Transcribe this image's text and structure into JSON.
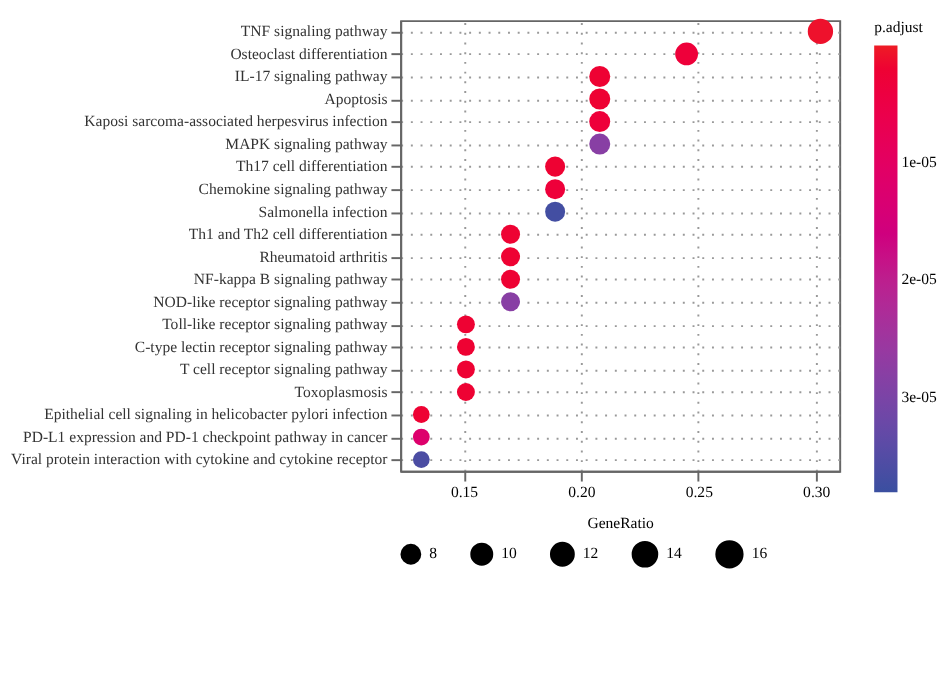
{
  "chart_data": {
    "type": "bubble",
    "orientation": "horizontal",
    "xlabel": "GeneRatio",
    "clabel": "p.adjust",
    "categories": [
      "TNF signaling pathway",
      "Osteoclast differentiation",
      "IL-17 signaling pathway",
      "Apoptosis",
      "Kaposi sarcoma-associated herpesvirus infection",
      "MAPK signaling pathway",
      "Th17 cell differentiation",
      "Chemokine signaling pathway",
      "Salmonella infection",
      "Th1 and Th2 cell differentiation",
      "Rheumatoid arthritis",
      "NF-kappa B signaling pathway",
      "NOD-like receptor signaling pathway",
      "Toll-like receptor signaling pathway",
      "C-type lectin receptor signaling pathway",
      "T cell receptor signaling pathway",
      "Toxoplasmosis",
      "Epithelial cell signaling in helicobacter pylori infection",
      "PD-L1 expression and PD-1 checkpoint pathway in cancer",
      "Viral protein interaction with cytokine and cytokine receptor"
    ],
    "values": [
      0.302,
      0.245,
      0.208,
      0.208,
      0.208,
      0.208,
      0.189,
      0.189,
      0.189,
      0.17,
      0.17,
      0.17,
      0.17,
      0.151,
      0.151,
      0.151,
      0.151,
      0.132,
      0.132,
      0.132
    ],
    "sizes": [
      16,
      13,
      11,
      11,
      11,
      11,
      10,
      10,
      10,
      9,
      9,
      9,
      9,
      8,
      8,
      8,
      8,
      7,
      7,
      7
    ],
    "size_legend": [
      8,
      10,
      12,
      14,
      16
    ],
    "cvalues": [
      1e-06,
      3e-06,
      2e-06,
      2e-06,
      3e-06,
      2.8e-05,
      2e-06,
      3e-06,
      3.7e-05,
      2e-06,
      2e-06,
      2e-06,
      2.8e-05,
      2e-06,
      2e-06,
      2e-06,
      2e-06,
      2e-06,
      1.2e-05,
      3.6e-05
    ],
    "clim": [
      0,
      3.8e-05
    ],
    "cticks": [
      {
        "value": 1e-05,
        "label": "1e-05"
      },
      {
        "value": 2e-05,
        "label": "2e-05"
      },
      {
        "value": 3e-05,
        "label": "3e-05"
      }
    ],
    "xlim": [
      0.123,
      0.31
    ],
    "xticks": [
      0.15,
      {
        "value": 0.2,
        "label": "0.20"
      },
      0.25,
      {
        "value": 0.3,
        "label": "0.30"
      }
    ],
    "grid": true
  }
}
